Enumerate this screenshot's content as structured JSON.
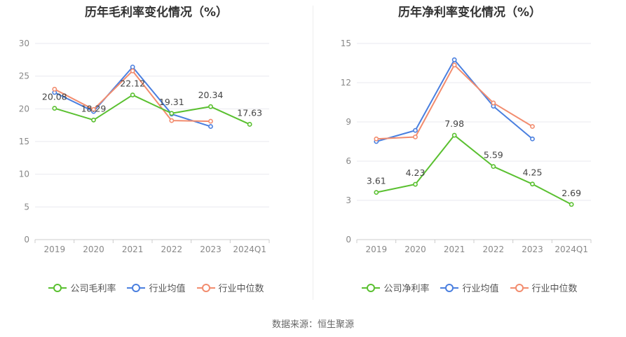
{
  "chart_data": [
    {
      "type": "line",
      "title": "历年毛利率变化情况（%）",
      "categories": [
        "2019",
        "2020",
        "2021",
        "2022",
        "2023",
        "2024Q1"
      ],
      "ylim": [
        0,
        30
      ],
      "yticks": [
        0,
        5,
        10,
        15,
        20,
        25,
        30
      ],
      "grid": true,
      "legend_position": "bottom",
      "series": [
        {
          "name": "公司毛利率",
          "color": "#5ac030",
          "values": [
            20.08,
            18.29,
            22.12,
            19.31,
            20.34,
            17.63
          ],
          "labels": [
            "20.08",
            "18.29",
            "22.12",
            "19.31",
            "20.34",
            "17.63"
          ]
        },
        {
          "name": "行业均值",
          "color": "#4a7fdf",
          "values": [
            22.5,
            19.6,
            26.4,
            19.2,
            17.3,
            null
          ]
        },
        {
          "name": "行业中位数",
          "color": "#f28c6e",
          "values": [
            23.0,
            19.9,
            25.8,
            18.2,
            18.1,
            null
          ]
        }
      ]
    },
    {
      "type": "line",
      "title": "历年净利率变化情况（%）",
      "categories": [
        "2019",
        "2020",
        "2021",
        "2022",
        "2023",
        "2024Q1"
      ],
      "ylim": [
        0,
        15
      ],
      "yticks": [
        0,
        3,
        6,
        9,
        12,
        15
      ],
      "grid": true,
      "legend_position": "bottom",
      "series": [
        {
          "name": "公司净利率",
          "color": "#5ac030",
          "values": [
            3.61,
            4.23,
            7.98,
            5.59,
            4.25,
            2.69
          ],
          "labels": [
            "3.61",
            "4.23",
            "7.98",
            "5.59",
            "4.25",
            "2.69"
          ]
        },
        {
          "name": "行业均值",
          "color": "#4a7fdf",
          "values": [
            7.5,
            8.35,
            13.75,
            10.2,
            7.7,
            null
          ]
        },
        {
          "name": "行业中位数",
          "color": "#f28c6e",
          "values": [
            7.7,
            7.85,
            13.35,
            10.45,
            8.65,
            null
          ]
        }
      ]
    }
  ],
  "source_text": "数据来源：恒生聚源"
}
